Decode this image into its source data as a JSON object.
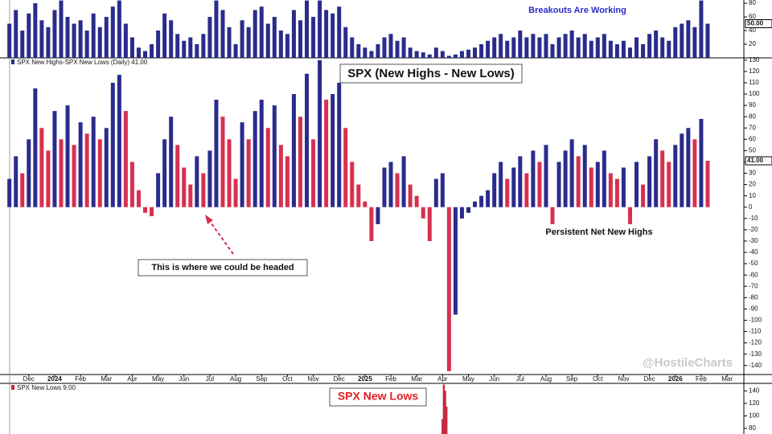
{
  "watermark": "@HostileCharts",
  "chart_data": [
    {
      "type": "bar",
      "annotation": "Breakouts Are Working",
      "last_label": "50.00",
      "color": "#2a2c8c",
      "xlim": [
        -0.74,
        27.65
      ],
      "ylim": [
        0,
        84.7
      ],
      "yticks": [
        20,
        40,
        60,
        80
      ],
      "x": [
        -0.75,
        -0.5,
        -0.25,
        0,
        0.25,
        0.5,
        0.75,
        1,
        1.25,
        1.5,
        1.75,
        2,
        2.25,
        2.5,
        2.75,
        3,
        3.25,
        3.5,
        3.75,
        4,
        4.25,
        4.5,
        4.75,
        5,
        5.25,
        5.5,
        5.75,
        6,
        6.25,
        6.5,
        6.75,
        7,
        7.25,
        7.5,
        7.75,
        8,
        8.25,
        8.5,
        8.75,
        9,
        9.25,
        9.5,
        9.75,
        10,
        10.25,
        10.5,
        10.75,
        11,
        11.25,
        11.5,
        11.75,
        12,
        12.25,
        12.5,
        12.75,
        13,
        13.25,
        13.5,
        13.75,
        14,
        14.25,
        14.5,
        14.75,
        15,
        15.25,
        15.5,
        15.75,
        16,
        16.25,
        16.5,
        16.75,
        17,
        17.25,
        17.5,
        17.75,
        18,
        18.25,
        18.5,
        18.75,
        19,
        19.25,
        19.5,
        19.75,
        20,
        20.25,
        20.5,
        20.75,
        21,
        21.25,
        21.5,
        21.75,
        22,
        22.25,
        22.5,
        22.75,
        23,
        23.25,
        23.5,
        23.75,
        24,
        24.25,
        24.5,
        24.75,
        25,
        25.25,
        25.5,
        25.75,
        26,
        26.25
      ],
      "values": [
        50,
        70,
        40,
        65,
        80,
        55,
        45,
        70,
        84,
        60,
        50,
        55,
        40,
        65,
        45,
        60,
        75,
        84,
        50,
        30,
        15,
        10,
        20,
        40,
        65,
        55,
        35,
        25,
        30,
        20,
        35,
        60,
        84,
        70,
        45,
        20,
        55,
        45,
        70,
        75,
        50,
        60,
        40,
        35,
        70,
        55,
        84,
        60,
        84,
        70,
        65,
        75,
        45,
        30,
        20,
        15,
        10,
        20,
        30,
        35,
        25,
        30,
        15,
        10,
        8,
        5,
        15,
        10,
        3,
        5,
        10,
        12,
        15,
        20,
        25,
        30,
        35,
        25,
        30,
        40,
        30,
        35,
        30,
        35,
        20,
        30,
        35,
        40,
        30,
        35,
        25,
        30,
        35,
        25,
        20,
        25,
        15,
        30,
        20,
        35,
        40,
        30,
        25,
        45,
        50,
        55,
        45,
        84,
        50
      ]
    },
    {
      "type": "bar",
      "legend_label": "SPX New Highs-SPX New Lows (Daily) 41.00",
      "title": "SPX (New Highs - New Lows)",
      "last_label": "41.00",
      "annotations": [
        "This is where we could be headed",
        "Persistent Net New Highs"
      ],
      "up_color": "#2a2c8c",
      "down_color": "#d8304f",
      "xlim": [
        -0.74,
        27.65
      ],
      "ylim": [
        -148,
        132
      ],
      "yticks": [
        -140,
        -130,
        -120,
        -110,
        -100,
        -90,
        -80,
        -70,
        -60,
        -50,
        -40,
        -30,
        -20,
        -10,
        0,
        10,
        20,
        30,
        40,
        50,
        60,
        70,
        80,
        90,
        100,
        110,
        120,
        130
      ],
      "xticks": [
        {
          "value": 0,
          "label": "Dec"
        },
        {
          "value": 1,
          "label": "2024"
        },
        {
          "value": 2,
          "label": "Feb"
        },
        {
          "value": 3,
          "label": "Mar"
        },
        {
          "value": 4,
          "label": "Apr"
        },
        {
          "value": 5,
          "label": "May"
        },
        {
          "value": 6,
          "label": "Jun"
        },
        {
          "value": 7,
          "label": "Jul"
        },
        {
          "value": 8,
          "label": "Aug"
        },
        {
          "value": 9,
          "label": "Sep"
        },
        {
          "value": 10,
          "label": "Oct"
        },
        {
          "value": 11,
          "label": "Nov"
        },
        {
          "value": 12,
          "label": "Dec"
        },
        {
          "value": 13,
          "label": "2025"
        },
        {
          "value": 14,
          "label": "Feb"
        },
        {
          "value": 15,
          "label": "Mar"
        },
        {
          "value": 16,
          "label": "Apr"
        },
        {
          "value": 17,
          "label": "May"
        },
        {
          "value": 18,
          "label": "Jun"
        },
        {
          "value": 19,
          "label": "Jul"
        },
        {
          "value": 20,
          "label": "Aug"
        },
        {
          "value": 21,
          "label": "Sep"
        },
        {
          "value": 22,
          "label": "Oct"
        },
        {
          "value": 23,
          "label": "Nov"
        },
        {
          "value": 24,
          "label": "Dec"
        },
        {
          "value": 25,
          "label": "2026"
        },
        {
          "value": 26,
          "label": "Feb"
        },
        {
          "value": 27,
          "label": "Mar"
        }
      ],
      "x": [
        -0.75,
        -0.5,
        -0.25,
        0,
        0.25,
        0.5,
        0.75,
        1,
        1.25,
        1.5,
        1.75,
        2,
        2.25,
        2.5,
        2.75,
        3,
        3.25,
        3.5,
        3.75,
        4,
        4.25,
        4.5,
        4.75,
        5,
        5.25,
        5.5,
        5.75,
        6,
        6.25,
        6.5,
        6.75,
        7,
        7.25,
        7.5,
        7.75,
        8,
        8.25,
        8.5,
        8.75,
        9,
        9.25,
        9.5,
        9.75,
        10,
        10.25,
        10.5,
        10.75,
        11,
        11.25,
        11.5,
        11.75,
        12,
        12.25,
        12.5,
        12.75,
        13,
        13.25,
        13.5,
        13.75,
        14,
        14.25,
        14.5,
        14.75,
        15,
        15.25,
        15.5,
        15.75,
        16,
        16.25,
        16.5,
        16.75,
        17,
        17.25,
        17.5,
        17.75,
        18,
        18.25,
        18.5,
        18.75,
        19,
        19.25,
        19.5,
        19.75,
        20,
        20.25,
        20.5,
        20.75,
        21,
        21.25,
        21.5,
        21.75,
        22,
        22.25,
        22.5,
        22.75,
        23,
        23.25,
        23.5,
        23.75,
        24,
        24.25,
        24.5,
        24.75,
        25,
        25.25,
        25.5,
        25.75,
        26,
        26.25
      ],
      "values": [
        25,
        45,
        30,
        60,
        105,
        70,
        50,
        85,
        60,
        90,
        55,
        75,
        65,
        80,
        60,
        70,
        110,
        117,
        85,
        40,
        15,
        -5,
        -8,
        30,
        60,
        80,
        55,
        35,
        20,
        45,
        30,
        50,
        95,
        80,
        60,
        25,
        75,
        60,
        85,
        95,
        70,
        90,
        55,
        45,
        100,
        80,
        118,
        60,
        130,
        95,
        100,
        110,
        70,
        40,
        20,
        5,
        -30,
        -15,
        35,
        40,
        30,
        45,
        20,
        10,
        -10,
        -30,
        25,
        30,
        -145,
        -95,
        -10,
        -5,
        5,
        10,
        15,
        30,
        40,
        25,
        35,
        45,
        30,
        50,
        40,
        55,
        -15,
        40,
        50,
        60,
        45,
        55,
        35,
        40,
        50,
        30,
        25,
        35,
        -15,
        40,
        20,
        45,
        60,
        50,
        40,
        55,
        65,
        70,
        60,
        78,
        41
      ]
    },
    {
      "type": "bar",
      "legend_label": "SPX New Lows 9.00",
      "title": "SPX New Lows",
      "color": "#c8283c",
      "xlim": [
        -0.74,
        27.65
      ],
      "ylim": [
        71,
        152
      ],
      "yticks": [
        80,
        100,
        120,
        140
      ],
      "x": [
        16.0,
        16.05,
        16.1,
        16.15
      ],
      "values": [
        95,
        150,
        140,
        115
      ]
    }
  ]
}
